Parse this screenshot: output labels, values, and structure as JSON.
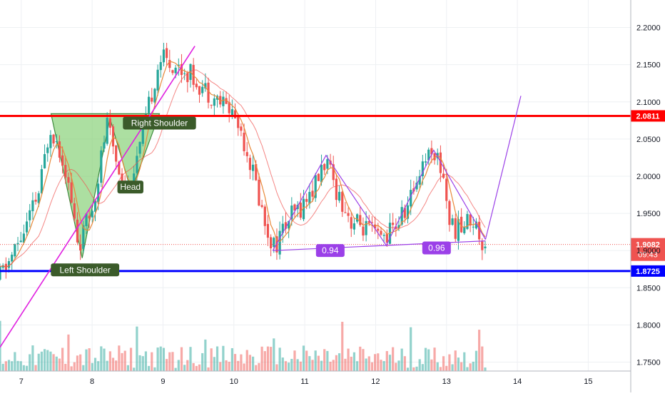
{
  "chart_data": {
    "type": "candlestick",
    "y_axis": {
      "ticks": [
        "2.2000",
        "2.1500",
        "2.1000",
        "2.0500",
        "2.0000",
        "1.9500",
        "1.9000",
        "1.8500",
        "1.8000",
        "1.7500"
      ],
      "tick_values": [
        2.2,
        2.15,
        2.1,
        2.05,
        2.0,
        1.95,
        1.9,
        1.85,
        1.8,
        1.75
      ],
      "range": [
        1.738,
        2.237
      ],
      "position": "right"
    },
    "x_axis": {
      "ticks": [
        "7",
        "8",
        "9",
        "10",
        "11",
        "12",
        "13",
        "14",
        "15"
      ],
      "tick_values": [
        7,
        8,
        9,
        10,
        11,
        12,
        13,
        14,
        15
      ],
      "range": [
        6.7,
        15.6
      ]
    },
    "grid": true,
    "horizontal_levels": [
      {
        "label": "2.0811",
        "value": 2.0811,
        "color": "#ff0000"
      },
      {
        "label": "1.8725",
        "value": 1.8725,
        "color": "#0000ff"
      }
    ],
    "current_price": {
      "label": "1.9082",
      "value": 1.9082,
      "timer": "09:43",
      "color": "#ef5350"
    },
    "annotations": [
      {
        "text": "Right Shoulder",
        "x": 8.95,
        "y": 2.0715
      },
      {
        "text": "Head",
        "x": 8.54,
        "y": 1.9855
      },
      {
        "text": "Left Shoulder",
        "x": 7.9,
        "y": 1.874
      },
      {
        "text": "0.94",
        "x": 11.36,
        "y": 1.9
      },
      {
        "text": "0.96",
        "x": 12.86,
        "y": 1.9035
      }
    ],
    "pattern_polygon": [
      [
        7.42,
        2.084
      ],
      [
        7.86,
        1.89
      ],
      [
        8.25,
        2.078
      ],
      [
        8.55,
        1.98
      ],
      [
        8.95,
        2.084
      ]
    ],
    "trendline": [
      [
        6.7,
        1.77
      ],
      [
        9.45,
        2.175
      ]
    ],
    "zigzag": [
      [
        10.55,
        1.9
      ],
      [
        11.3,
        2.028
      ],
      [
        12.15,
        1.907
      ],
      [
        12.82,
        2.035
      ],
      [
        13.55,
        1.915
      ]
    ],
    "baseline": [
      [
        10.55,
        1.9
      ],
      [
        13.55,
        1.913
      ]
    ],
    "projection": [
      [
        13.55,
        1.915
      ],
      [
        14.05,
        2.108
      ]
    ],
    "colors": {
      "up": "#26a69a",
      "down": "#ef5350",
      "ma_fast": "#e8893a",
      "ma_slow": "#ef5350",
      "trend": "#e020e0",
      "zigzag": "#9b40e8",
      "pattern_fill": "#7fce6f"
    }
  }
}
